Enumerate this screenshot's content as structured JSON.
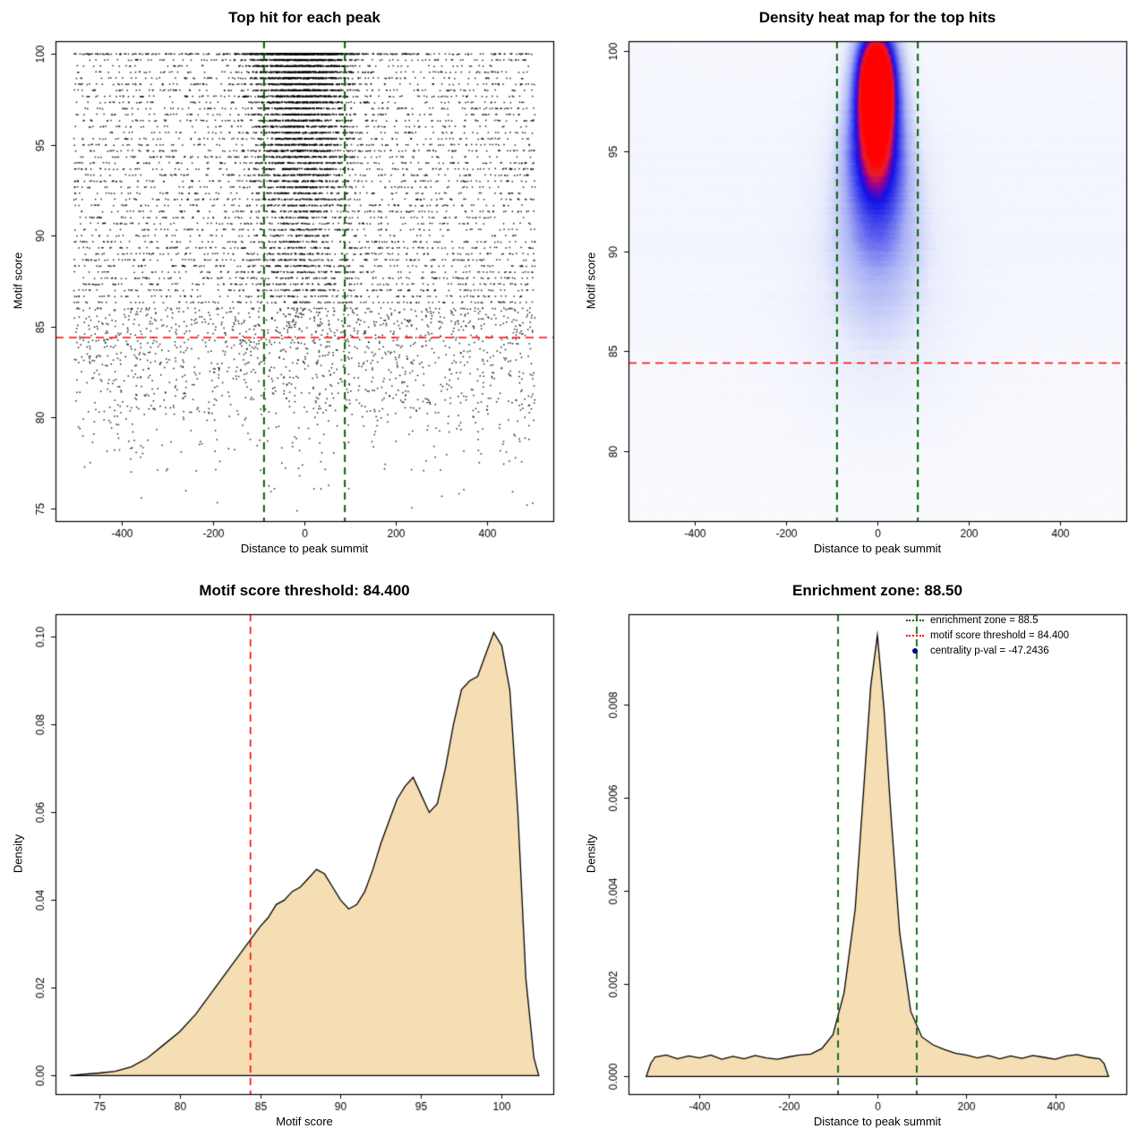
{
  "chart_data": [
    {
      "type": "scatter",
      "title": "Top hit for each peak",
      "xlabel": "Distance to peak summit",
      "ylabel": "Motif score",
      "xlim": [
        -545,
        545
      ],
      "ylim": [
        74.3,
        100.7
      ],
      "xticks": {
        "values": [
          -400,
          -200,
          0,
          200,
          400
        ],
        "labels": [
          "-400",
          "-200",
          "0",
          "200",
          "400"
        ]
      },
      "yticks": {
        "values": [
          75,
          80,
          85,
          90,
          95,
          100
        ],
        "labels": [
          "75",
          "80",
          "85",
          "90",
          "95",
          "100"
        ]
      },
      "n_points": 11000,
      "seed": 77,
      "x_range": [
        -505,
        505
      ],
      "x_center_mean": -8,
      "x_center_sigma": 58,
      "point_color": "#000000",
      "threshold": {
        "value": 84.4,
        "color": "#FF0000"
      },
      "zone": {
        "values": [
          -88.5,
          88.5
        ],
        "color": "#006400"
      }
    },
    {
      "type": "heatmap",
      "title": "Density heat map for the top hits",
      "xlabel": "Distance to peak summit",
      "ylabel": "Motif score",
      "xlim": [
        -545,
        545
      ],
      "ylim": [
        76.5,
        100.5
      ],
      "xticks": {
        "values": [
          -400,
          -200,
          0,
          200,
          400
        ],
        "labels": [
          "-400",
          "-200",
          "0",
          "200",
          "400"
        ]
      },
      "yticks": {
        "values": [
          80,
          85,
          90,
          95,
          100
        ],
        "labels": [
          "80",
          "85",
          "90",
          "95",
          "100"
        ]
      },
      "blobs": [
        {
          "a": 1.2,
          "cx": -2,
          "sx": 33,
          "cy": 98.7,
          "sy": 2.0
        },
        {
          "a": 0.55,
          "cx": -4,
          "sx": 46,
          "cy": 95.4,
          "sy": 2.1
        },
        {
          "a": 0.3,
          "cx": 0,
          "sx": 58,
          "cy": 92.6,
          "sy": 2.6
        },
        {
          "a": 0.16,
          "cx": 0,
          "sx": 82,
          "cy": 89.6,
          "sy": 3.2
        },
        {
          "a": 0.08,
          "cx": 0,
          "sx": 115,
          "cy": 86.5,
          "sy": 4.0
        }
      ],
      "colormap": [
        [
          0,
          255,
          255,
          255
        ],
        [
          0.2,
          232,
          236,
          252
        ],
        [
          0.42,
          170,
          178,
          245
        ],
        [
          0.6,
          80,
          84,
          238
        ],
        [
          0.74,
          16,
          16,
          232
        ],
        [
          0.83,
          150,
          0,
          150
        ],
        [
          0.9,
          235,
          30,
          40
        ],
        [
          1,
          255,
          0,
          0
        ]
      ],
      "threshold": {
        "value": 84.4,
        "color": "#FF0000"
      },
      "zone": {
        "values": [
          -88.5,
          88.5
        ],
        "color": "#006400"
      }
    },
    {
      "type": "area",
      "title": "Motif score threshold: 84.400",
      "xlabel": "Motif score",
      "ylabel": "Density",
      "xlim": [
        72.3,
        103.2
      ],
      "ylim": [
        -0.0042,
        0.1052
      ],
      "xticks": {
        "values": [
          75,
          80,
          85,
          90,
          95,
          100
        ],
        "labels": [
          "75",
          "80",
          "85",
          "90",
          "95",
          "100"
        ]
      },
      "yticks": {
        "values": [
          0,
          0.02,
          0.04,
          0.06,
          0.08,
          0.1
        ],
        "labels": [
          "0.00",
          "0.02",
          "0.04",
          "0.06",
          "0.08",
          "0.10"
        ]
      },
      "fill_color": "#F5DEB3",
      "line_color": "#000000",
      "threshold": {
        "value": 84.4,
        "color": "#FF0000"
      },
      "x": [
        73.2,
        74,
        75,
        76,
        77,
        78,
        79,
        80,
        81,
        82,
        83,
        84,
        84.4,
        85,
        85.5,
        86,
        86.5,
        87,
        87.5,
        88,
        88.5,
        89,
        89.5,
        90,
        90.5,
        91,
        91.5,
        92,
        92.5,
        93,
        93.5,
        94,
        94.5,
        95,
        95.5,
        96,
        96.5,
        97,
        97.5,
        98,
        98.5,
        99,
        99.5,
        100,
        100.5,
        101,
        101.5,
        102,
        102.3
      ],
      "y": [
        0,
        0.0003,
        0.0006,
        0.001,
        0.002,
        0.004,
        0.007,
        0.01,
        0.014,
        0.019,
        0.024,
        0.029,
        0.031,
        0.034,
        0.036,
        0.039,
        0.04,
        0.042,
        0.043,
        0.045,
        0.047,
        0.046,
        0.043,
        0.04,
        0.038,
        0.039,
        0.042,
        0.047,
        0.053,
        0.058,
        0.063,
        0.066,
        0.068,
        0.064,
        0.06,
        0.062,
        0.07,
        0.08,
        0.088,
        0.09,
        0.091,
        0.096,
        0.101,
        0.098,
        0.088,
        0.06,
        0.022,
        0.004,
        0
      ]
    },
    {
      "type": "area",
      "title": "Enrichment zone: 88.50",
      "xlabel": "Distance to peak summit",
      "ylabel": "Density",
      "xlim": [
        -560,
        560
      ],
      "ylim": [
        -0.00038,
        0.00995
      ],
      "xticks": {
        "values": [
          -400,
          -200,
          0,
          200,
          400
        ],
        "labels": [
          "-400",
          "-200",
          "0",
          "200",
          "400"
        ]
      },
      "yticks": {
        "values": [
          0,
          0.002,
          0.004,
          0.006,
          0.008
        ],
        "labels": [
          "0.000",
          "0.002",
          "0.004",
          "0.006",
          "0.008"
        ]
      },
      "fill_color": "#F5DEB3",
      "line_color": "#000000",
      "zone": {
        "values": [
          -88.5,
          88.5
        ],
        "color": "#006400"
      },
      "legend": [
        {
          "label": "enrichment zone = 88.5",
          "color": "#006400",
          "marker": "dotted-line"
        },
        {
          "label": "motif score threshold = 84.400",
          "color": "#FF0000",
          "marker": "dotted-line"
        },
        {
          "label": "centrality p-val = -47.2436",
          "color": "#00008B",
          "marker": "dot"
        }
      ],
      "x": [
        -520,
        -510,
        -500,
        -475,
        -450,
        -425,
        -400,
        -375,
        -350,
        -325,
        -300,
        -275,
        -250,
        -225,
        -200,
        -175,
        -150,
        -125,
        -100,
        -75,
        -50,
        -30,
        -15,
        0,
        15,
        30,
        50,
        75,
        100,
        125,
        150,
        175,
        200,
        225,
        250,
        275,
        300,
        325,
        350,
        375,
        400,
        425,
        450,
        475,
        500,
        510,
        520
      ],
      "y": [
        0,
        0.00028,
        0.00042,
        0.00046,
        0.00038,
        0.00044,
        0.0004,
        0.00046,
        0.00037,
        0.00043,
        0.00038,
        0.00045,
        0.0004,
        0.00037,
        0.00042,
        0.00046,
        0.00048,
        0.0006,
        0.0009,
        0.0018,
        0.0036,
        0.0063,
        0.0084,
        0.0095,
        0.0079,
        0.0057,
        0.0031,
        0.0014,
        0.00085,
        0.00068,
        0.00058,
        0.0005,
        0.00046,
        0.0004,
        0.00045,
        0.00038,
        0.00044,
        0.00039,
        0.00045,
        0.00041,
        0.00037,
        0.00044,
        0.00047,
        0.00041,
        0.00038,
        0.00028,
        0
      ]
    }
  ]
}
